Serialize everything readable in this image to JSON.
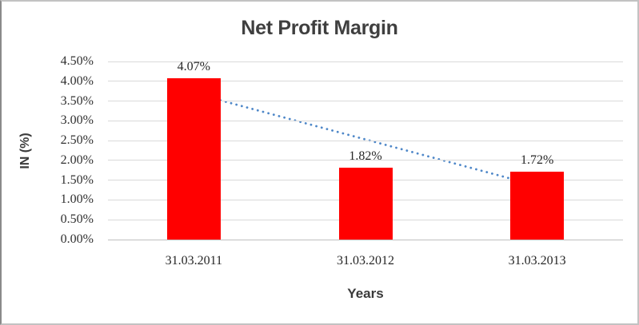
{
  "chart_data": {
    "type": "bar",
    "title": "Net Profit Margin",
    "categories": [
      "31.03.2011",
      "31.03.2012",
      "31.03.2013"
    ],
    "values": [
      4.07,
      1.82,
      1.72
    ],
    "data_labels": [
      "4.07%",
      "1.82%",
      "1.72%"
    ],
    "xlabel": "Years",
    "ylabel": "IN (%)",
    "ylim": [
      0,
      4.5
    ],
    "ytick_step": 0.5,
    "ytick_labels": [
      "0.00%",
      "0.50%",
      "1.00%",
      "1.50%",
      "2.00%",
      "2.50%",
      "3.00%",
      "3.50%",
      "4.00%",
      "4.50%"
    ],
    "grid": true,
    "legend": "none",
    "bar_color": "#ff0000",
    "gridline_color": "#d9d9d9",
    "title_color": "#3f3f3f",
    "axis_text_color": "#303030",
    "trendline": {
      "type": "linear",
      "style": "dotted",
      "color": "#4e87c8",
      "start_value": 3.7,
      "end_value": 1.36
    }
  }
}
